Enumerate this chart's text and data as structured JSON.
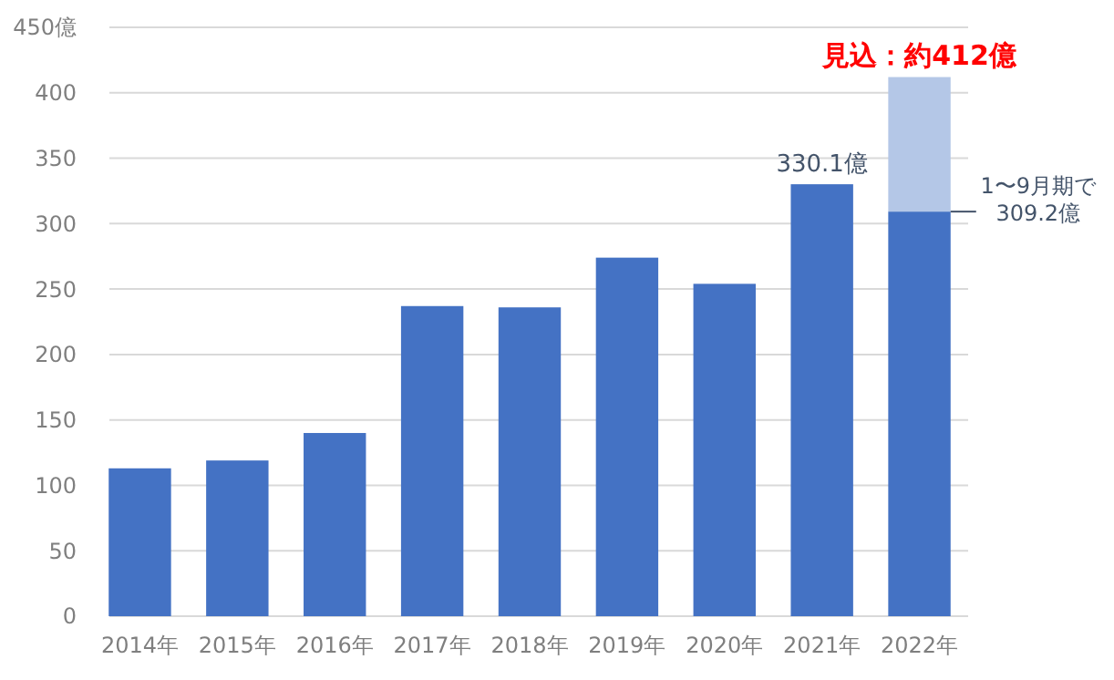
{
  "chart_data": {
    "type": "bar",
    "stacked": true,
    "categories": [
      "2014年",
      "2015年",
      "2016年",
      "2017年",
      "2018年",
      "2019年",
      "2020年",
      "2021年",
      "2022年"
    ],
    "series": [
      {
        "color": "#4472c4",
        "values": [
          113,
          119,
          140,
          237,
          236,
          274,
          254,
          330.1,
          309.2
        ]
      },
      {
        "color": "#b4c7e7",
        "values": [
          null,
          null,
          null,
          null,
          null,
          null,
          null,
          null,
          102.8
        ]
      }
    ],
    "ylim": [
      0,
      450
    ],
    "yticks": [
      0,
      50,
      100,
      150,
      200,
      250,
      300,
      350,
      400,
      {
        "value": 450,
        "label": "450億"
      }
    ],
    "grid": "y",
    "annotations": [
      {
        "text": "330.1億",
        "x": "2021年",
        "y": 330.1
      },
      {
        "text": "1〜9月期で 309.2億",
        "x": "2022年",
        "y": 309.2
      },
      {
        "text": "見込：約412億",
        "x": "2022年",
        "y": 412
      }
    ]
  }
}
